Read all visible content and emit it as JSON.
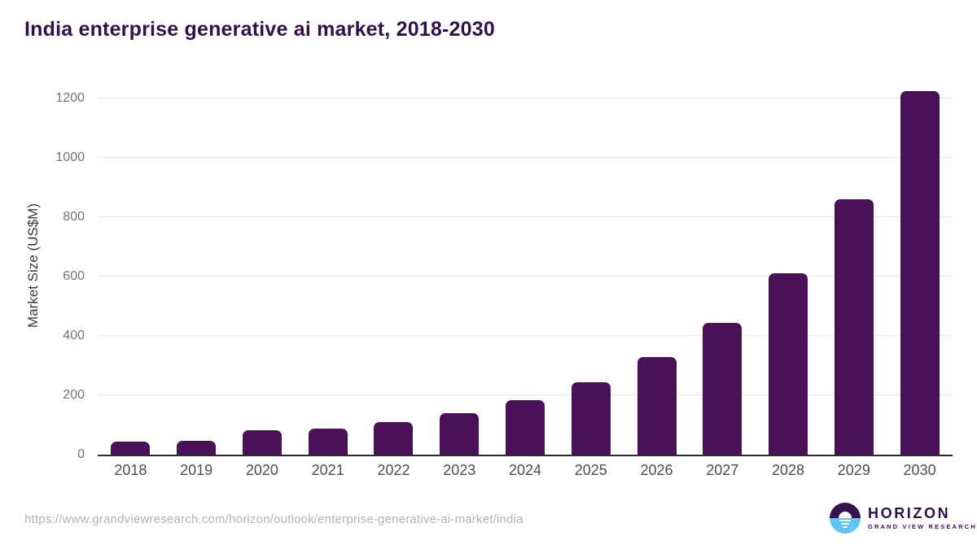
{
  "page": {
    "title": "India enterprise generative ai market, 2018-2030"
  },
  "chart_data": {
    "type": "bar",
    "title": "India enterprise generative ai market, 2018-2030",
    "categories": [
      "2018",
      "2019",
      "2020",
      "2021",
      "2022",
      "2023",
      "2024",
      "2025",
      "2026",
      "2027",
      "2028",
      "2029",
      "2030"
    ],
    "values": [
      45,
      47,
      81,
      87,
      110,
      140,
      184,
      244,
      328,
      443,
      612,
      860,
      1225
    ],
    "xlabel": "",
    "ylabel": "Market Size (US$M)",
    "ylim": [
      0,
      1200
    ],
    "yticks": [
      0,
      200,
      400,
      600,
      800,
      1000,
      1200
    ],
    "grid": true,
    "legend_position": "none",
    "bar_color": "#4a1158"
  },
  "footer": {
    "source_url": "https://www.grandviewresearch.com/horizon/outlook/enterprise-generative-ai-market/india",
    "logo": {
      "name": "HORIZON",
      "subtitle": "GRAND VIEW RESEARCH",
      "icon": "horizon-sun-circle-icon"
    }
  },
  "colors": {
    "title_text": "#32104b",
    "bar": "#4a1158",
    "axis_line": "#2b2b2b",
    "grid_line": "#e8e8e8",
    "y_tick_text": "#757575",
    "x_tick_text": "#4d4d4d",
    "url_text": "#b4b4b4",
    "logo_purple": "#38104d",
    "logo_blue": "#5ec5ef"
  }
}
